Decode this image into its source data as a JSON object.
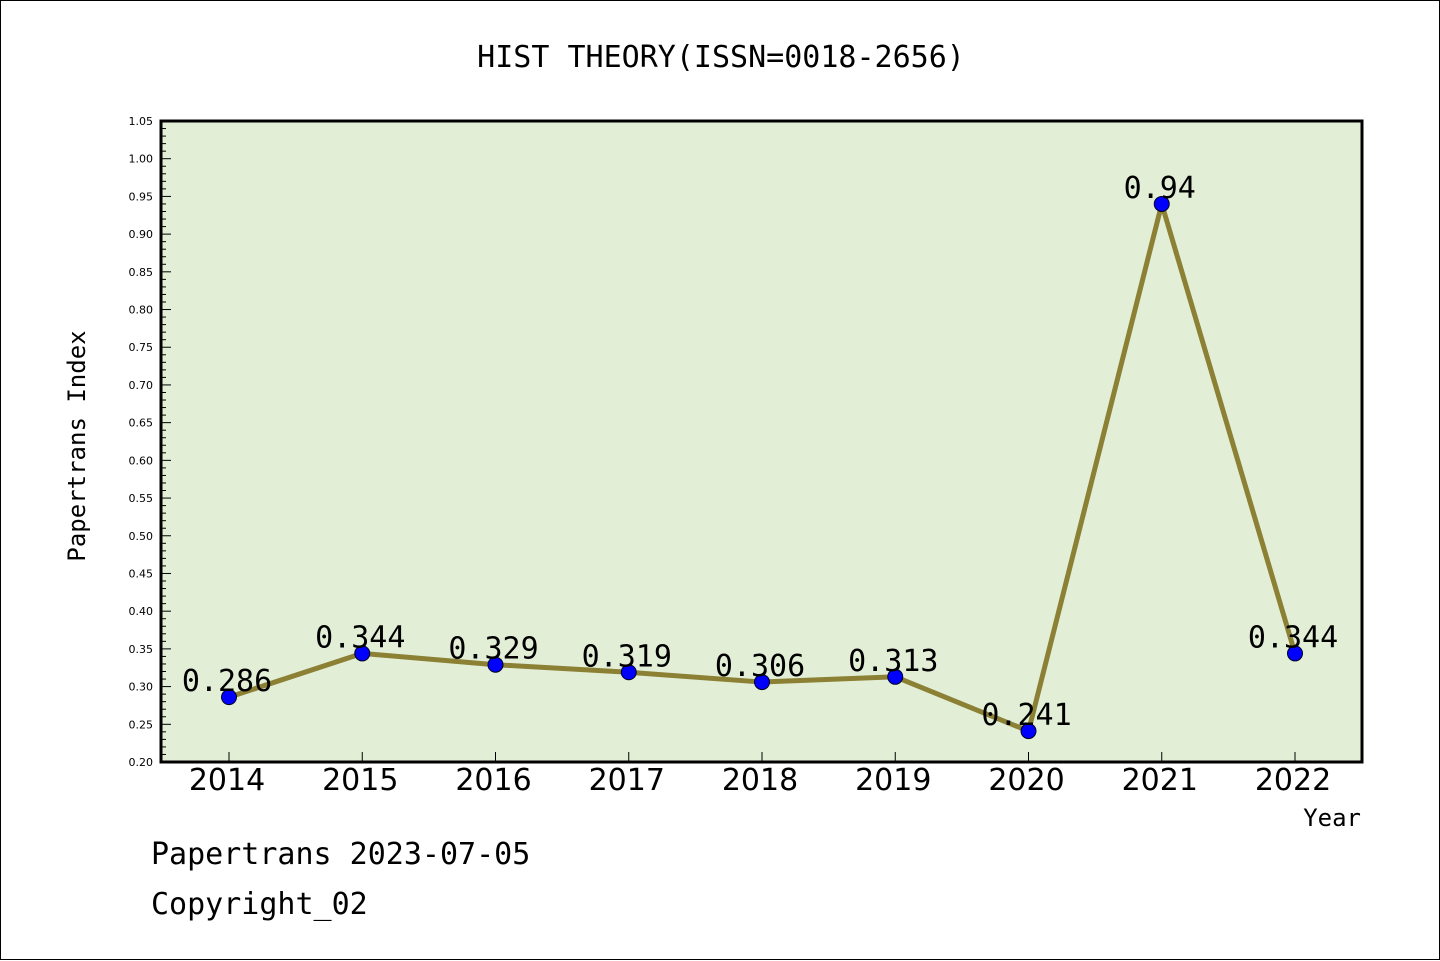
{
  "chart_data": {
    "type": "line",
    "title": "HIST THEORY(ISSN=0018-2656)",
    "xlabel": "Year",
    "ylabel": "Papertrans Index",
    "categories": [
      "2014",
      "2015",
      "2016",
      "2017",
      "2018",
      "2019",
      "2020",
      "2021",
      "2022"
    ],
    "values": [
      0.286,
      0.344,
      0.329,
      0.319,
      0.306,
      0.313,
      0.241,
      0.94,
      0.344
    ],
    "data_labels": [
      "0.286",
      "0.344",
      "0.329",
      "0.319",
      "0.306",
      "0.313",
      "0.241",
      "0.94",
      "0.344"
    ],
    "ylim": [
      0.2,
      1.05
    ],
    "yticks": [
      "0.20",
      "0.25",
      "0.30",
      "0.35",
      "0.40",
      "0.45",
      "0.50",
      "0.55",
      "0.60",
      "0.65",
      "0.70",
      "0.75",
      "0.80",
      "0.85",
      "0.90",
      "0.95",
      "1.00",
      "1.05"
    ],
    "grid": false,
    "colors": {
      "plot_background": "#e2efd6",
      "line": "#8b8034",
      "marker": "#0000ff"
    }
  },
  "footer": {
    "date_line": "Papertrans 2023-07-05",
    "copyright": "Copyright_02"
  }
}
